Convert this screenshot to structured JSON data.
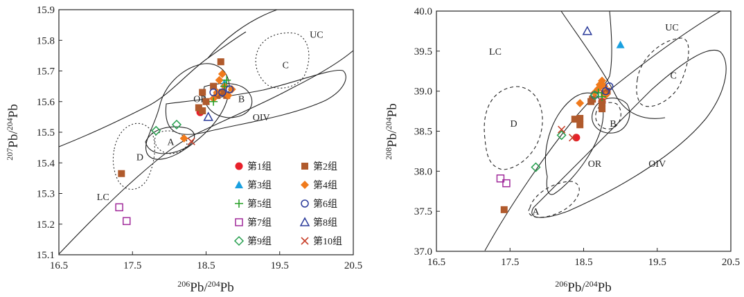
{
  "chart_data": [
    {
      "type": "scatter",
      "panel": "left",
      "xlabel_iso_num": "206",
      "xlabel_iso_den": "204",
      "xlabel_elem": "Pb",
      "ylabel_iso_num": "207",
      "ylabel_iso_den": "204",
      "ylabel_elem": "Pb",
      "xlim": [
        16.5,
        20.5
      ],
      "ylim": [
        15.1,
        15.9
      ],
      "xticks": [
        "16.5",
        "17.5",
        "18.5",
        "19.5",
        "20.5"
      ],
      "yticks": [
        "15.1",
        "15.2",
        "15.3",
        "15.4",
        "15.5",
        "15.6",
        "15.7",
        "15.8",
        "15.9"
      ],
      "region_labels": [
        {
          "text": "UC",
          "x": 20.0,
          "y": 15.82
        },
        {
          "text": "C",
          "x": 19.58,
          "y": 15.72
        },
        {
          "text": "OR",
          "x": 18.42,
          "y": 15.61
        },
        {
          "text": "B",
          "x": 18.98,
          "y": 15.61
        },
        {
          "text": "OIV",
          "x": 19.25,
          "y": 15.55
        },
        {
          "text": "A",
          "x": 18.02,
          "y": 15.47
        },
        {
          "text": "D",
          "x": 17.6,
          "y": 15.42
        },
        {
          "text": "LC",
          "x": 17.1,
          "y": 15.29
        }
      ],
      "series": [
        {
          "name": "第1组",
          "marker": "circle-filled",
          "color": "#e8202a",
          "points": [
            [
              18.42,
              15.565
            ]
          ]
        },
        {
          "name": "第2组",
          "marker": "square-filled",
          "color": "#b05a2c",
          "points": [
            [
              17.35,
              15.365
            ],
            [
              18.4,
              15.58
            ],
            [
              18.45,
              15.57
            ],
            [
              18.45,
              15.63
            ],
            [
              18.5,
              15.6
            ],
            [
              18.6,
              15.65
            ],
            [
              18.65,
              15.62
            ],
            [
              18.7,
              15.73
            ],
            [
              18.72,
              15.63
            ],
            [
              18.78,
              15.62
            ]
          ]
        },
        {
          "name": "第3组",
          "marker": "triangle-filled",
          "color": "#19a0e0",
          "points": [
            [
              18.75,
              15.66
            ]
          ]
        },
        {
          "name": "第4组",
          "marker": "diamond-filled",
          "color": "#f07a1c",
          "points": [
            [
              18.2,
              15.48
            ],
            [
              18.65,
              15.63
            ],
            [
              18.68,
              15.67
            ],
            [
              18.72,
              15.69
            ],
            [
              18.75,
              15.65
            ],
            [
              18.8,
              15.62
            ],
            [
              18.85,
              15.64
            ],
            [
              18.6,
              15.61
            ]
          ]
        },
        {
          "name": "第5组",
          "marker": "plus",
          "color": "#28a028",
          "points": [
            [
              18.6,
              15.6
            ],
            [
              18.75,
              15.65
            ],
            [
              18.78,
              15.67
            ]
          ]
        },
        {
          "name": "第6组",
          "marker": "circle-open",
          "color": "#2a3a9a",
          "points": [
            [
              18.6,
              15.63
            ],
            [
              18.72,
              15.63
            ],
            [
              18.82,
              15.64
            ]
          ]
        },
        {
          "name": "第7组",
          "marker": "square-open",
          "color": "#a02a9a",
          "points": [
            [
              17.32,
              15.255
            ],
            [
              17.42,
              15.21
            ]
          ]
        },
        {
          "name": "第8组",
          "marker": "triangle-open",
          "color": "#2a3a9a",
          "points": [
            [
              18.53,
              15.55
            ]
          ]
        },
        {
          "name": "第9组",
          "marker": "diamond-open",
          "color": "#28a050",
          "points": [
            [
              17.82,
              15.505
            ],
            [
              18.1,
              15.525
            ]
          ]
        },
        {
          "name": "第10组",
          "marker": "x",
          "color": "#c8402a",
          "points": [
            [
              18.3,
              15.47
            ]
          ]
        }
      ]
    },
    {
      "type": "scatter",
      "panel": "right",
      "xlabel_iso_num": "206",
      "xlabel_iso_den": "204",
      "xlabel_elem": "Pb",
      "ylabel_iso_num": "208",
      "ylabel_iso_den": "204",
      "ylabel_elem": "Pb",
      "xlim": [
        16.5,
        20.5
      ],
      "ylim": [
        37.0,
        40.0
      ],
      "xticks": [
        "16.5",
        "17.5",
        "18.5",
        "19.5",
        "20.5"
      ],
      "yticks": [
        "37.0",
        "37.5",
        "38.0",
        "38.5",
        "39.0",
        "39.5",
        "40.0"
      ],
      "region_labels": [
        {
          "text": "UC",
          "x": 19.7,
          "y": 39.8
        },
        {
          "text": "LC",
          "x": 17.3,
          "y": 39.5
        },
        {
          "text": "C",
          "x": 19.72,
          "y": 39.2
        },
        {
          "text": "D",
          "x": 17.55,
          "y": 38.6
        },
        {
          "text": "B",
          "x": 18.9,
          "y": 38.6
        },
        {
          "text": "OR",
          "x": 18.65,
          "y": 38.1
        },
        {
          "text": "OIV",
          "x": 19.5,
          "y": 38.1
        },
        {
          "text": "A",
          "x": 17.85,
          "y": 37.5
        }
      ],
      "series": [
        {
          "name": "第1组",
          "marker": "circle-filled",
          "color": "#e8202a",
          "points": [
            [
              18.4,
              38.42
            ],
            [
              18.75,
              38.87
            ]
          ]
        },
        {
          "name": "第2组",
          "marker": "square-filled",
          "color": "#b05a2c",
          "points": [
            [
              17.42,
              37.52
            ],
            [
              18.38,
              38.65
            ],
            [
              18.45,
              38.58
            ],
            [
              18.45,
              38.66
            ],
            [
              18.6,
              38.87
            ],
            [
              18.62,
              38.9
            ],
            [
              18.75,
              38.78
            ],
            [
              18.75,
              38.85
            ],
            [
              18.78,
              38.97
            ],
            [
              18.82,
              39.0
            ]
          ]
        },
        {
          "name": "第3组",
          "marker": "triangle-filled",
          "color": "#19a0e0",
          "points": [
            [
              19.0,
              39.58
            ]
          ]
        },
        {
          "name": "第4组",
          "marker": "diamond-filled",
          "color": "#f07a1c",
          "points": [
            [
              18.45,
              38.85
            ],
            [
              18.65,
              38.98
            ],
            [
              18.7,
              39.03
            ],
            [
              18.72,
              39.08
            ],
            [
              18.75,
              39.13
            ],
            [
              18.78,
              39.06
            ],
            [
              18.8,
              38.95
            ]
          ]
        },
        {
          "name": "第5组",
          "marker": "plus",
          "color": "#28a028",
          "points": [
            [
              18.7,
              38.98
            ],
            [
              18.75,
              38.93
            ]
          ]
        },
        {
          "name": "第6组",
          "marker": "circle-open",
          "color": "#2a3a9a",
          "points": [
            [
              18.65,
              38.95
            ],
            [
              18.8,
              39.0
            ],
            [
              18.85,
              39.06
            ]
          ]
        },
        {
          "name": "第7组",
          "marker": "square-open",
          "color": "#a02a9a",
          "points": [
            [
              17.37,
              37.91
            ],
            [
              17.45,
              37.85
            ]
          ]
        },
        {
          "name": "第8组",
          "marker": "triangle-open",
          "color": "#2a3a9a",
          "points": [
            [
              18.55,
              39.75
            ]
          ]
        },
        {
          "name": "第9组",
          "marker": "diamond-open",
          "color": "#28a050",
          "points": [
            [
              17.85,
              38.05
            ],
            [
              18.2,
              38.45
            ],
            [
              18.65,
              38.95
            ]
          ]
        },
        {
          "name": "第10组",
          "marker": "x",
          "color": "#c8402a",
          "points": [
            [
              18.2,
              38.52
            ],
            [
              18.35,
              38.42
            ]
          ]
        }
      ]
    }
  ],
  "legend": {
    "placement": "bottom-right of left panel",
    "items": [
      "第1组",
      "第2组",
      "第3组",
      "第4组",
      "第5组",
      "第6组",
      "第7组",
      "第8组",
      "第9组",
      "第10组"
    ]
  }
}
